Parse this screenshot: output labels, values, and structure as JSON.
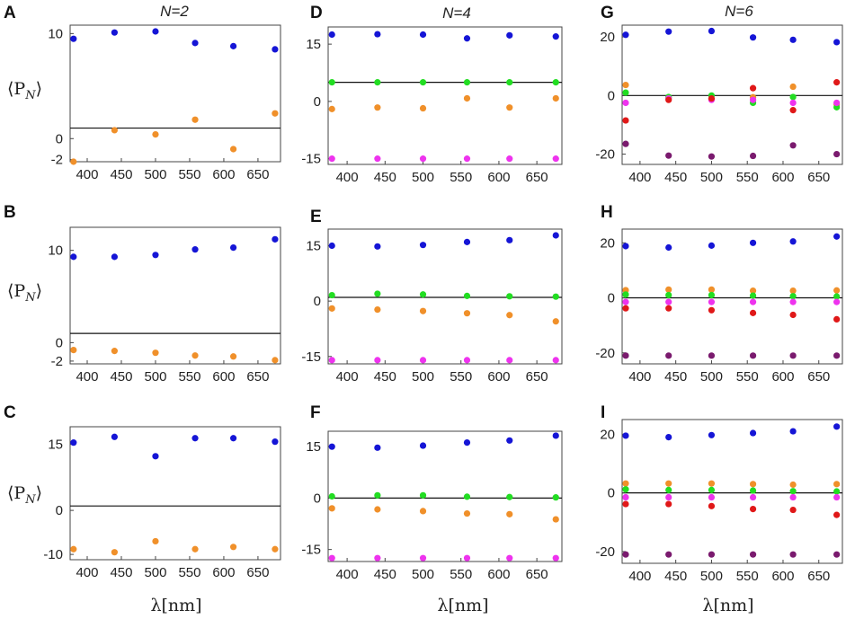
{
  "figure": {
    "column_titles": [
      "N=2",
      "N=4",
      "N=6"
    ],
    "xlabel": "λ[nm]",
    "ylabel": "⟨P_N⟩",
    "ylabel_main": "⟨P",
    "ylabel_sub": "N",
    "ylabel_close": "⟩"
  },
  "colors": {
    "blue": "#1515d6",
    "orange": "#f0902a",
    "green": "#22dd22",
    "magenta": "#ee33ee",
    "red": "#e01818",
    "purple": "#7a1a6e"
  },
  "chart_data": [
    {
      "panel": "A",
      "type": "scatter",
      "title": "N=2",
      "ylim": [
        -2.2,
        10.8
      ],
      "yticks": [
        {
          "v": 10,
          "t": "10"
        },
        {
          "v": 0,
          "t": "0"
        },
        {
          "v": -2,
          "t": "-2"
        }
      ],
      "zero": 1.0,
      "xticks": [
        400,
        450,
        500,
        550,
        600,
        650
      ],
      "x": [
        380,
        440,
        500,
        558,
        614,
        675
      ],
      "series": [
        {
          "name": "blue",
          "color": "#1515d6",
          "values": [
            9.5,
            10.1,
            10.2,
            9.1,
            8.8,
            8.5
          ]
        },
        {
          "name": "orange",
          "color": "#f0902a",
          "values": [
            -2.2,
            0.8,
            0.4,
            1.8,
            -1.0,
            2.4
          ]
        }
      ]
    },
    {
      "panel": "B",
      "type": "scatter",
      "title": "",
      "ylim": [
        -2.3,
        12.5
      ],
      "yticks": [
        {
          "v": 10,
          "t": "10"
        },
        {
          "v": 0,
          "t": "0"
        },
        {
          "v": -2,
          "t": "-2"
        }
      ],
      "zero": 1.0,
      "xticks": [
        400,
        450,
        500,
        550,
        600,
        650
      ],
      "x": [
        380,
        440,
        500,
        558,
        614,
        675
      ],
      "series": [
        {
          "name": "blue",
          "color": "#1515d6",
          "values": [
            9.3,
            9.3,
            9.5,
            10.1,
            10.3,
            11.2
          ]
        },
        {
          "name": "orange",
          "color": "#f0902a",
          "values": [
            -0.8,
            -0.9,
            -1.1,
            -1.4,
            -1.5,
            -1.9
          ]
        }
      ]
    },
    {
      "panel": "C",
      "type": "scatter",
      "title": "",
      "ylim": [
        -11.2,
        19
      ],
      "yticks": [
        {
          "v": 15,
          "t": "15"
        },
        {
          "v": 0,
          "t": "0"
        },
        {
          "v": -10,
          "t": "-10"
        }
      ],
      "zero": 1.0,
      "xticks": [
        400,
        450,
        500,
        550,
        600,
        650
      ],
      "x": [
        380,
        440,
        500,
        558,
        614,
        675
      ],
      "series": [
        {
          "name": "blue",
          "color": "#1515d6",
          "values": [
            15.4,
            16.7,
            12.3,
            16.4,
            16.4,
            15.6
          ]
        },
        {
          "name": "orange",
          "color": "#f0902a",
          "values": [
            -8.8,
            -9.5,
            -7.0,
            -8.8,
            -8.3,
            -8.8
          ]
        }
      ]
    },
    {
      "panel": "D",
      "type": "scatter",
      "title": "N=4",
      "ylim": [
        -16.5,
        19.5
      ],
      "yticks": [
        {
          "v": 15,
          "t": "15"
        },
        {
          "v": 0,
          "t": "0"
        },
        {
          "v": -15,
          "t": "-15"
        }
      ],
      "zero": 5.0,
      "xticks": [
        400,
        450,
        500,
        550,
        600,
        650
      ],
      "x": [
        380,
        440,
        500,
        558,
        614,
        675
      ],
      "series": [
        {
          "name": "blue",
          "color": "#1515d6",
          "values": [
            17.5,
            17.6,
            17.5,
            16.5,
            17.3,
            17.0
          ]
        },
        {
          "name": "green",
          "color": "#22dd22",
          "values": [
            5.0,
            5.0,
            5.0,
            5.0,
            5.0,
            5.0
          ]
        },
        {
          "name": "orange",
          "color": "#f0902a",
          "values": [
            -2.0,
            -1.6,
            -1.8,
            0.8,
            -1.6,
            0.8
          ]
        },
        {
          "name": "magenta",
          "color": "#ee33ee",
          "values": [
            -15.0,
            -15.0,
            -15.0,
            -15.0,
            -15.0,
            -15.0
          ]
        }
      ]
    },
    {
      "panel": "E",
      "type": "scatter",
      "title": "",
      "ylim": [
        -17,
        19.5
      ],
      "yticks": [
        {
          "v": 15,
          "t": "15"
        },
        {
          "v": 0,
          "t": "0"
        },
        {
          "v": -15,
          "t": "-15"
        }
      ],
      "zero": 1.0,
      "xticks": [
        400,
        450,
        500,
        550,
        600,
        650
      ],
      "x": [
        380,
        440,
        500,
        558,
        614,
        675
      ],
      "series": [
        {
          "name": "blue",
          "color": "#1515d6",
          "values": [
            15.0,
            14.8,
            15.2,
            16.0,
            16.5,
            17.8
          ]
        },
        {
          "name": "green",
          "color": "#22dd22",
          "values": [
            1.6,
            2.0,
            1.8,
            1.4,
            1.3,
            1.2
          ]
        },
        {
          "name": "orange",
          "color": "#f0902a",
          "values": [
            -2.0,
            -2.3,
            -2.7,
            -3.3,
            -3.8,
            -5.5
          ]
        },
        {
          "name": "magenta",
          "color": "#ee33ee",
          "values": [
            -16.0,
            -16.0,
            -16.0,
            -16.0,
            -16.0,
            -16.0
          ]
        }
      ]
    },
    {
      "panel": "F",
      "type": "scatter",
      "title": "",
      "ylim": [
        -18.5,
        19.5
      ],
      "yticks": [
        {
          "v": 15,
          "t": "15"
        },
        {
          "v": 0,
          "t": "0"
        },
        {
          "v": -15,
          "t": "-15"
        }
      ],
      "zero": 0.0,
      "xticks": [
        400,
        450,
        500,
        550,
        600,
        650
      ],
      "x": [
        380,
        440,
        500,
        558,
        614,
        675
      ],
      "series": [
        {
          "name": "blue",
          "color": "#1515d6",
          "values": [
            15.0,
            14.7,
            15.3,
            16.2,
            16.8,
            18.2
          ]
        },
        {
          "name": "green",
          "color": "#22dd22",
          "values": [
            0.5,
            0.8,
            0.8,
            0.4,
            0.3,
            0.2
          ]
        },
        {
          "name": "orange",
          "color": "#f0902a",
          "values": [
            -3.0,
            -3.3,
            -3.8,
            -4.5,
            -4.7,
            -6.2
          ]
        },
        {
          "name": "magenta",
          "color": "#ee33ee",
          "values": [
            -17.5,
            -17.5,
            -17.5,
            -17.5,
            -17.5,
            -17.5
          ]
        }
      ]
    },
    {
      "panel": "G",
      "type": "scatter",
      "title": "N=6",
      "ylim": [
        -23.5,
        24
      ],
      "yticks": [
        {
          "v": 20,
          "t": "20"
        },
        {
          "v": 0,
          "t": "0"
        },
        {
          "v": -20,
          "t": "-20"
        }
      ],
      "zero": 0.0,
      "xticks": [
        400,
        450,
        500,
        550,
        600,
        650
      ],
      "x": [
        380,
        440,
        500,
        558,
        614,
        675
      ],
      "series": [
        {
          "name": "blue",
          "color": "#1515d6",
          "values": [
            20.7,
            21.8,
            22.0,
            19.8,
            19.0,
            18.2
          ]
        },
        {
          "name": "orange",
          "color": "#f0902a",
          "values": [
            3.6,
            -0.8,
            -1.2,
            -0.6,
            3.0,
            -3.0
          ]
        },
        {
          "name": "green",
          "color": "#22dd22",
          "values": [
            1.0,
            -0.5,
            0.0,
            -2.5,
            -0.5,
            -4.0
          ]
        },
        {
          "name": "magenta",
          "color": "#ee33ee",
          "values": [
            -2.5,
            -1.0,
            -1.5,
            -1.5,
            -2.5,
            -2.5
          ]
        },
        {
          "name": "red",
          "color": "#e01818",
          "values": [
            -8.5,
            -1.5,
            -1.0,
            2.5,
            -5.0,
            4.5
          ]
        },
        {
          "name": "purple",
          "color": "#7a1a6e",
          "values": [
            -16.5,
            -20.5,
            -20.8,
            -20.6,
            -17.0,
            -20.0
          ]
        }
      ]
    },
    {
      "panel": "H",
      "type": "scatter",
      "title": "",
      "ylim": [
        -24,
        25
      ],
      "yticks": [
        {
          "v": 20,
          "t": "20"
        },
        {
          "v": 0,
          "t": "0"
        },
        {
          "v": -20,
          "t": "-20"
        }
      ],
      "zero": 0.0,
      "xticks": [
        400,
        450,
        500,
        550,
        600,
        650
      ],
      "x": [
        380,
        440,
        500,
        558,
        614,
        675
      ],
      "series": [
        {
          "name": "blue",
          "color": "#1515d6",
          "values": [
            18.8,
            18.3,
            19.0,
            20.0,
            20.5,
            22.3
          ]
        },
        {
          "name": "orange",
          "color": "#f0902a",
          "values": [
            2.8,
            3.0,
            3.0,
            2.6,
            2.6,
            2.7
          ]
        },
        {
          "name": "green",
          "color": "#22dd22",
          "values": [
            1.2,
            1.0,
            1.0,
            0.8,
            0.6,
            0.5
          ]
        },
        {
          "name": "magenta",
          "color": "#ee33ee",
          "values": [
            -1.5,
            -1.5,
            -1.5,
            -1.5,
            -1.5,
            -1.5
          ]
        },
        {
          "name": "red",
          "color": "#e01818",
          "values": [
            -3.8,
            -3.8,
            -4.5,
            -5.5,
            -6.2,
            -7.8
          ]
        },
        {
          "name": "purple",
          "color": "#7a1a6e",
          "values": [
            -21.0,
            -21.0,
            -21.0,
            -21.0,
            -21.0,
            -21.0
          ]
        }
      ]
    },
    {
      "panel": "I",
      "type": "scatter",
      "title": "",
      "ylim": [
        -24,
        25
      ],
      "yticks": [
        {
          "v": 20,
          "t": "20"
        },
        {
          "v": 0,
          "t": "0"
        },
        {
          "v": -20,
          "t": "-20"
        }
      ],
      "zero": 0.0,
      "xticks": [
        400,
        450,
        500,
        550,
        600,
        650
      ],
      "x": [
        380,
        440,
        500,
        558,
        614,
        675
      ],
      "series": [
        {
          "name": "blue",
          "color": "#1515d6",
          "values": [
            19.5,
            19.0,
            19.7,
            20.4,
            21.0,
            22.6
          ]
        },
        {
          "name": "orange",
          "color": "#f0902a",
          "values": [
            3.2,
            3.2,
            3.2,
            3.0,
            2.8,
            3.0
          ]
        },
        {
          "name": "green",
          "color": "#22dd22",
          "values": [
            1.2,
            1.0,
            1.0,
            0.8,
            0.6,
            0.5
          ]
        },
        {
          "name": "magenta",
          "color": "#ee33ee",
          "values": [
            -1.5,
            -1.5,
            -1.5,
            -1.5,
            -1.5,
            -1.5
          ]
        },
        {
          "name": "red",
          "color": "#e01818",
          "values": [
            -3.8,
            -3.8,
            -4.5,
            -5.5,
            -5.8,
            -7.5
          ]
        },
        {
          "name": "purple",
          "color": "#7a1a6e",
          "values": [
            -21.0,
            -21.0,
            -21.0,
            -21.0,
            -21.0,
            -21.0
          ]
        }
      ]
    }
  ]
}
